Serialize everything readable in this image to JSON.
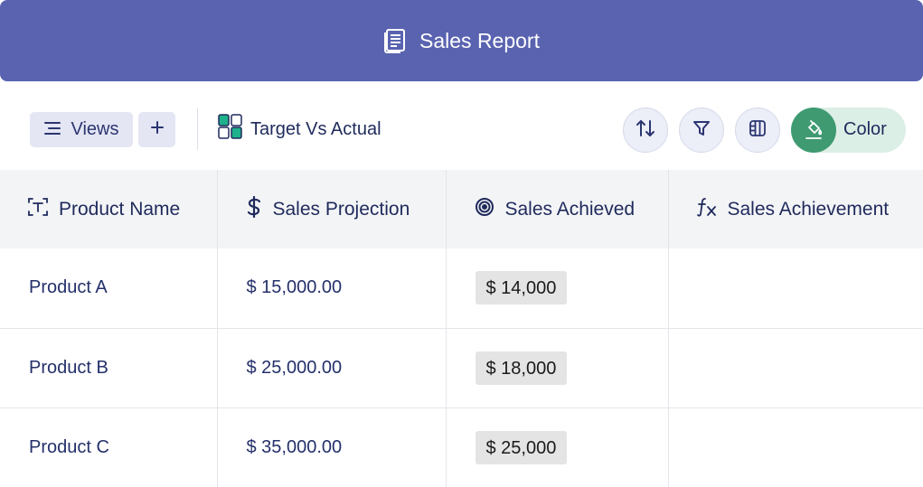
{
  "header": {
    "title": "Sales Report",
    "icon": "report-icon"
  },
  "toolbar": {
    "views_label": "Views",
    "add_label": "+",
    "view_name": "Target Vs Actual",
    "buttons": [
      {
        "name": "sort",
        "icon": "sort-icon"
      },
      {
        "name": "filter",
        "icon": "filter-icon"
      },
      {
        "name": "columns",
        "icon": "columns-icon"
      }
    ],
    "color_label": "Color",
    "accent": "#3f9a72"
  },
  "table": {
    "columns": [
      {
        "label": "Product Name",
        "icon": "text-field-icon"
      },
      {
        "label": "Sales Projection",
        "icon": "dollar-icon"
      },
      {
        "label": "Sales Achieved",
        "icon": "target-icon"
      },
      {
        "label": "Sales Achievement",
        "icon": "formula-icon"
      }
    ],
    "rows": [
      {
        "product": "Product A",
        "projection": "$ 15,000.00",
        "achieved": "$ 14,000",
        "achievement": ""
      },
      {
        "product": "Product B",
        "projection": "$ 25,000.00",
        "achieved": "$ 18,000",
        "achievement": ""
      },
      {
        "product": "Product C",
        "projection": "$ 35,000.00",
        "achieved": "$ 25,000",
        "achievement": ""
      }
    ]
  },
  "colors": {
    "header_bg": "#5a63b0",
    "text": "#1f2a5c",
    "header_row_bg": "#f3f4f6"
  }
}
